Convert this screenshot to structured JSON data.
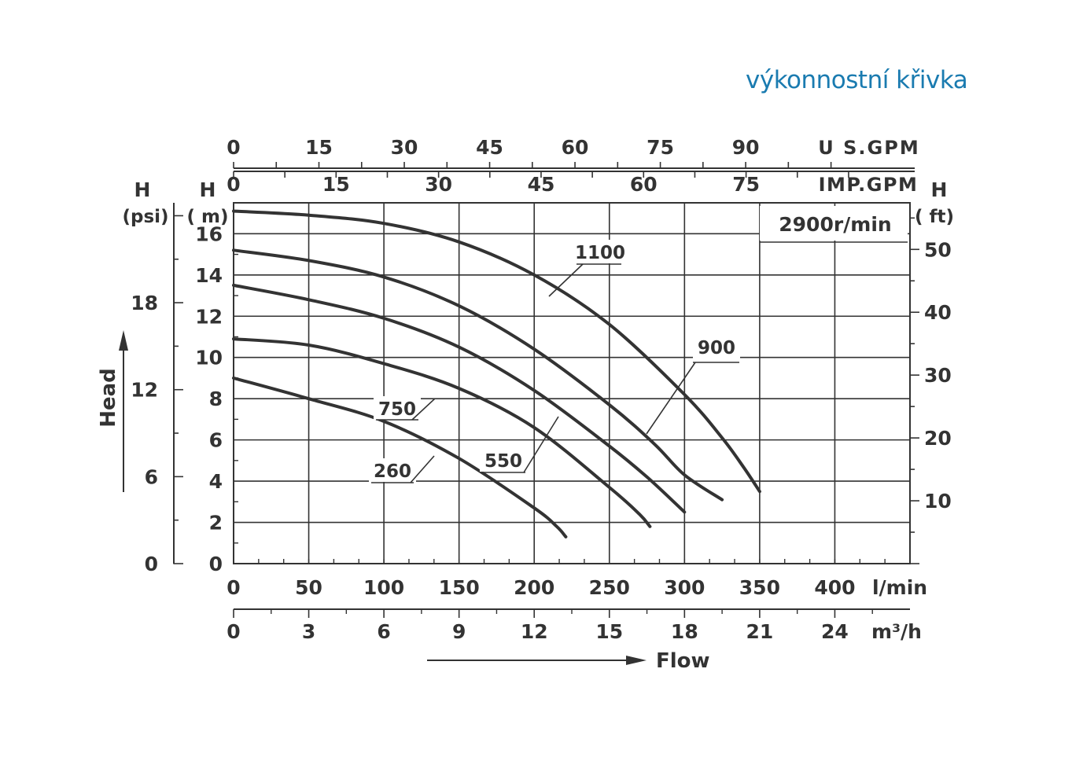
{
  "title": "výkonnostní křivka",
  "colors": {
    "title": "#1a7bb0",
    "ink": "#333333",
    "grid": "#333333"
  },
  "chart_data": {
    "type": "line",
    "speed_label": "2900r/min",
    "x_axis": {
      "unit": "l/min",
      "range": [
        0,
        450
      ],
      "ticks": [
        0,
        50,
        100,
        150,
        200,
        250,
        300,
        350,
        400
      ],
      "label": "Flow"
    },
    "x_axis_m3h": {
      "unit": "m³/h",
      "ticks": [
        0,
        3,
        6,
        9,
        12,
        15,
        18,
        21,
        24
      ]
    },
    "x_axis_usgpm": {
      "unit": "U S.GPM",
      "ticks": [
        0,
        15,
        30,
        45,
        60,
        75,
        90
      ]
    },
    "x_axis_impgpm": {
      "unit": "IMP.GPM",
      "ticks": [
        0,
        15,
        30,
        45,
        60,
        75
      ]
    },
    "y_axis": {
      "unit_top": "H",
      "unit_bottom": "( m)",
      "range": [
        0,
        17.5
      ],
      "ticks": [
        0,
        2,
        4,
        6,
        8,
        10,
        12,
        14,
        16
      ]
    },
    "y_axis_psi": {
      "unit_top": "H",
      "unit_bottom": "(psi)",
      "ticks": [
        0,
        6,
        12,
        18
      ],
      "label": "Head"
    },
    "y_axis_ft": {
      "unit_top": "H",
      "unit_bottom": "( ft)",
      "ticks": [
        10,
        20,
        30,
        40,
        50
      ]
    },
    "grid": true,
    "series": [
      {
        "name": "1100",
        "x": [
          0,
          50,
          100,
          150,
          200,
          250,
          300,
          325,
          340,
          350
        ],
        "y": [
          17.1,
          16.9,
          16.5,
          15.6,
          14.0,
          11.6,
          8.2,
          6.1,
          4.6,
          3.5
        ]
      },
      {
        "name": "900",
        "x": [
          0,
          50,
          100,
          150,
          200,
          250,
          280,
          300,
          325
        ],
        "y": [
          15.2,
          14.7,
          13.9,
          12.5,
          10.4,
          7.7,
          5.8,
          4.3,
          3.1
        ]
      },
      {
        "name": "750",
        "x": [
          0,
          50,
          100,
          150,
          200,
          250,
          275,
          300
        ],
        "y": [
          13.5,
          12.8,
          11.9,
          10.5,
          8.4,
          5.7,
          4.2,
          2.5
        ]
      },
      {
        "name": "550",
        "x": [
          0,
          50,
          100,
          150,
          200,
          250,
          270,
          277
        ],
        "y": [
          10.9,
          10.6,
          9.7,
          8.5,
          6.6,
          3.7,
          2.4,
          1.8
        ]
      },
      {
        "name": "260",
        "x": [
          0,
          50,
          100,
          150,
          200,
          215,
          221
        ],
        "y": [
          9.0,
          8.0,
          6.9,
          5.1,
          2.7,
          1.8,
          1.3
        ]
      }
    ]
  }
}
